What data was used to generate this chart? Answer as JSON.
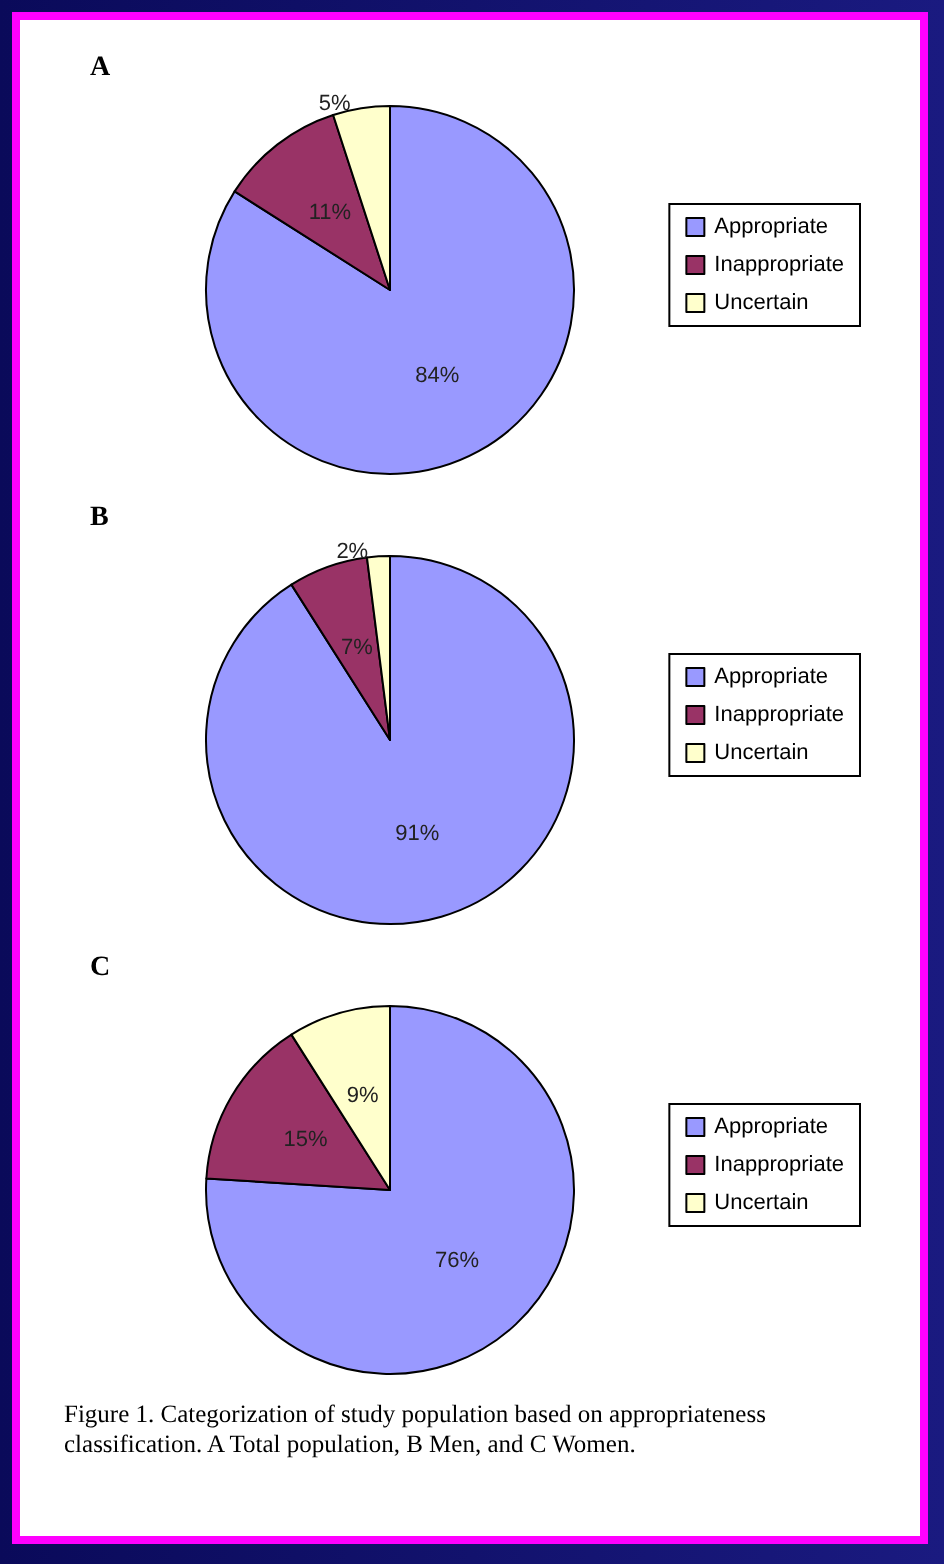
{
  "chart_data": [
    {
      "type": "pie",
      "title": "A",
      "categories": [
        "Appropriate",
        "Inappropriate",
        "Uncertain"
      ],
      "values": [
        84,
        11,
        5
      ],
      "value_labels": [
        "84%",
        "11%",
        "5%"
      ],
      "colors": [
        "#9999ff",
        "#993366",
        "#ffffcc"
      ],
      "legend": "right"
    },
    {
      "type": "pie",
      "title": "B",
      "categories": [
        "Appropriate",
        "Inappropriate",
        "Uncertain"
      ],
      "values": [
        91,
        7,
        2
      ],
      "value_labels": [
        "91%",
        "7%",
        "2%"
      ],
      "colors": [
        "#9999ff",
        "#993366",
        "#ffffcc"
      ],
      "legend": "right"
    },
    {
      "type": "pie",
      "title": "C",
      "categories": [
        "Appropriate",
        "Inappropriate",
        "Uncertain"
      ],
      "values": [
        76,
        15,
        9
      ],
      "value_labels": [
        "76%",
        "15%",
        "9%"
      ],
      "colors": [
        "#9999ff",
        "#993366",
        "#ffffcc"
      ],
      "legend": "right",
      "annotations": [
        "Figure 1. Categorization of study population based on appropriateness classification. A Total population, B Men, and C Women."
      ]
    }
  ]
}
